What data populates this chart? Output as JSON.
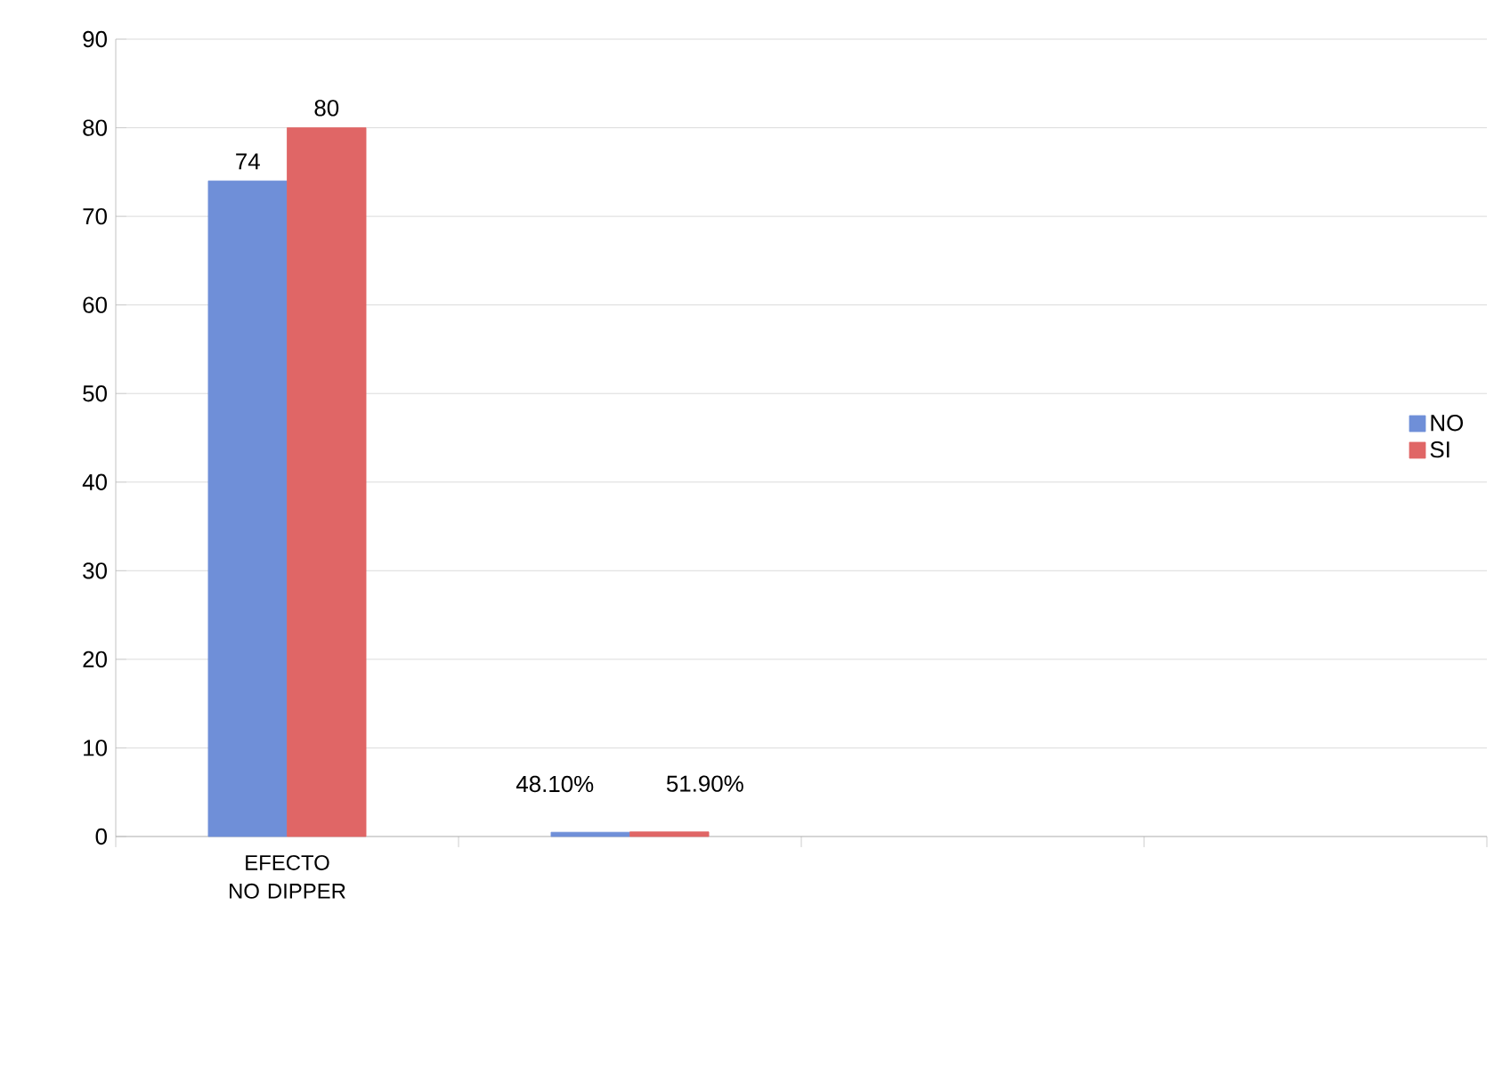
{
  "chart_data": {
    "type": "bar",
    "categories": [
      "EFECTO NO DIPPER",
      null,
      null,
      null
    ],
    "series": [
      {
        "name": "NO",
        "color": "#6f8fd8",
        "values": [
          74,
          0.481,
          null,
          null
        ],
        "value_labels": [
          "74",
          "48.10%",
          null,
          null
        ]
      },
      {
        "name": "SI",
        "color": "#e06666",
        "values": [
          80,
          0.519,
          null,
          null
        ],
        "value_labels": [
          "80",
          "51.90%",
          null,
          null
        ]
      }
    ],
    "ylim": [
      0,
      90
    ],
    "yticks": [
      0,
      10,
      20,
      30,
      40,
      50,
      60,
      70,
      80,
      90
    ],
    "grid": "y",
    "legend": "right"
  }
}
